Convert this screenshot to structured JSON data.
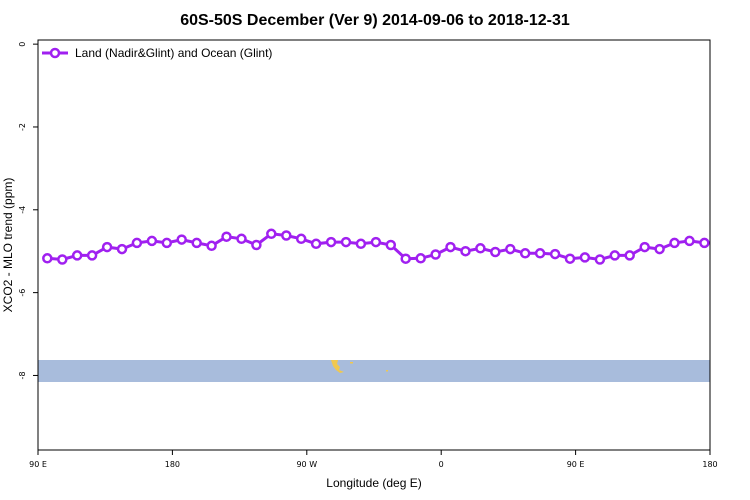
{
  "chart_data": {
    "type": "line",
    "title": "60S-50S December (Ver 9)   2014-09-06 to 2018-12-31",
    "xlabel": "Longitude (deg E)",
    "ylabel": "XCO2 - MLO trend (ppm)",
    "x_tick_labels": [
      "90 E",
      "180",
      "90 W",
      "0",
      "90 E",
      "180"
    ],
    "y_ticks": [
      0,
      -2,
      -4,
      -6,
      -8
    ],
    "y_tick_labels": [
      "0",
      "-2",
      "-4",
      "-6",
      "-8"
    ],
    "xlim": [
      90,
      450
    ],
    "ylim": [
      -9.8,
      0.1
    ],
    "grid": false,
    "legend_position": "top-left",
    "colors": {
      "series": "#a020f0",
      "ocean_band": "#a8bcdc",
      "land": "#f0c850"
    },
    "series": [
      {
        "name": "Land (Nadir&Glint) and Ocean (Glint)",
        "x": [
          95,
          103,
          111,
          119,
          127,
          135,
          143,
          151,
          159,
          167,
          175,
          183,
          191,
          199,
          207,
          215,
          223,
          231,
          239,
          247,
          255,
          263,
          271,
          279,
          287,
          295,
          303,
          311,
          319,
          327,
          335,
          343,
          351,
          359,
          367,
          375,
          383,
          391,
          399,
          407,
          415,
          423,
          431,
          439,
          447
        ],
        "values": [
          -5.17,
          -5.2,
          -5.1,
          -5.1,
          -4.9,
          -4.95,
          -4.8,
          -4.75,
          -4.8,
          -4.72,
          -4.8,
          -4.87,
          -4.65,
          -4.7,
          -4.85,
          -4.58,
          -4.62,
          -4.7,
          -4.82,
          -4.78,
          -4.78,
          -4.82,
          -4.78,
          -4.85,
          -5.18,
          -5.17,
          -5.08,
          -4.9,
          -5.0,
          -4.93,
          -5.02,
          -4.95,
          -5.05,
          -5.05,
          -5.07,
          -5.18,
          -5.15,
          -5.2,
          -5.1,
          -5.1,
          -4.9,
          -4.95,
          -4.8,
          -4.75,
          -4.8
        ]
      }
    ]
  }
}
